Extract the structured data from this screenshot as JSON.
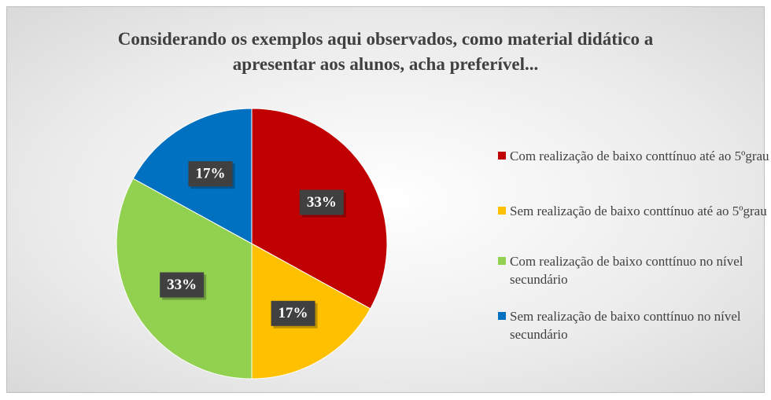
{
  "chart_data": {
    "type": "pie",
    "title": "Considerando os exemplos aqui observados, como material didático a apresentar aos alunos, acha preferível...",
    "categories": [
      "Com realização de baixo conttínuo até ao 5ºgrau",
      "Sem realização de baixo conttínuo até ao 5ºgrau",
      "Com realização de baixo conttínuo no nível secundário",
      "Sem realização de baixo conttínuo no nível secundário"
    ],
    "values": [
      33,
      17,
      33,
      17
    ],
    "value_labels": [
      "33%",
      "17%",
      "33%",
      "17%"
    ],
    "colors": [
      "#c00000",
      "#ffc000",
      "#92d050",
      "#0070c0"
    ],
    "legend": "right"
  }
}
